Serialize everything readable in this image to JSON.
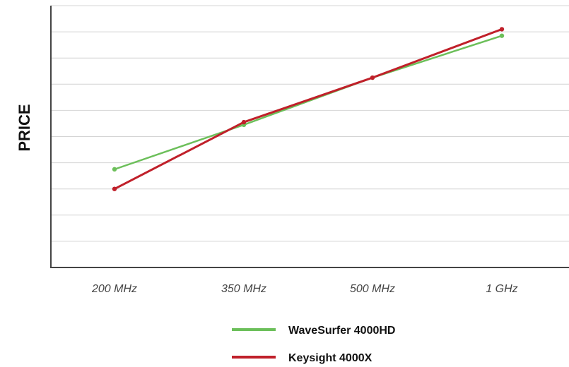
{
  "chart_data": {
    "type": "line",
    "title": "",
    "xlabel": "",
    "ylabel": "PRICE",
    "categories": [
      "200 MHz",
      "350 MHz",
      "500 MHz",
      "1 GHz"
    ],
    "ylim": [
      0,
      10
    ],
    "grid": true,
    "legend_position": "bottom-center",
    "series": [
      {
        "name": "WaveSurfer 4000HD",
        "values": [
          3.75,
          5.45,
          7.25,
          8.85
        ],
        "color": "#6cbf5a"
      },
      {
        "name": "Keysight 4000X",
        "values": [
          3.0,
          5.55,
          7.25,
          9.1
        ],
        "color": "#c0202a"
      }
    ]
  }
}
